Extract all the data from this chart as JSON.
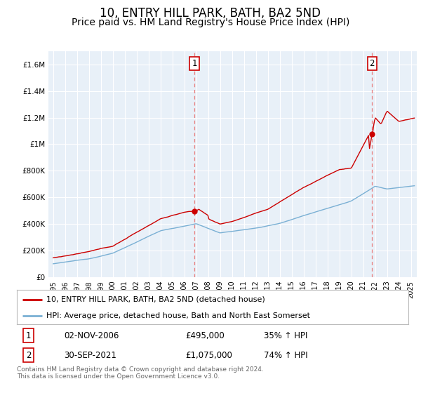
{
  "title": "10, ENTRY HILL PARK, BATH, BA2 5ND",
  "subtitle": "Price paid vs. HM Land Registry's House Price Index (HPI)",
  "title_fontsize": 12,
  "subtitle_fontsize": 10,
  "ylim": [
    0,
    1700000
  ],
  "yticks": [
    0,
    200000,
    400000,
    600000,
    800000,
    1000000,
    1200000,
    1400000,
    1600000
  ],
  "ytick_labels": [
    "£0",
    "£200K",
    "£400K",
    "£600K",
    "£800K",
    "£1M",
    "£1.2M",
    "£1.4M",
    "£1.6M"
  ],
  "xlim_start": 1994.6,
  "xlim_end": 2025.5,
  "xtick_years": [
    1995,
    1996,
    1997,
    1998,
    1999,
    2000,
    2001,
    2002,
    2003,
    2004,
    2005,
    2006,
    2007,
    2008,
    2009,
    2010,
    2011,
    2012,
    2013,
    2014,
    2015,
    2016,
    2017,
    2018,
    2019,
    2020,
    2021,
    2022,
    2023,
    2024,
    2025
  ],
  "red_line_color": "#cc0000",
  "blue_line_color": "#7ab0d4",
  "marker_color": "#cc0000",
  "dashed_line_color": "#e88080",
  "sale1_x": 2006.84,
  "sale1_y": 495000,
  "sale1_label": "1",
  "sale2_x": 2021.75,
  "sale2_y": 1075000,
  "sale2_label": "2",
  "legend_red_label": "10, ENTRY HILL PARK, BATH, BA2 5ND (detached house)",
  "legend_blue_label": "HPI: Average price, detached house, Bath and North East Somerset",
  "table_row1": [
    "1",
    "02-NOV-2006",
    "£495,000",
    "35% ↑ HPI"
  ],
  "table_row2": [
    "2",
    "30-SEP-2021",
    "£1,075,000",
    "74% ↑ HPI"
  ],
  "footer": "Contains HM Land Registry data © Crown copyright and database right 2024.\nThis data is licensed under the Open Government Licence v3.0.",
  "bg_color": "#ffffff",
  "plot_bg_color": "#e8f0f8",
  "grid_color": "#ffffff"
}
